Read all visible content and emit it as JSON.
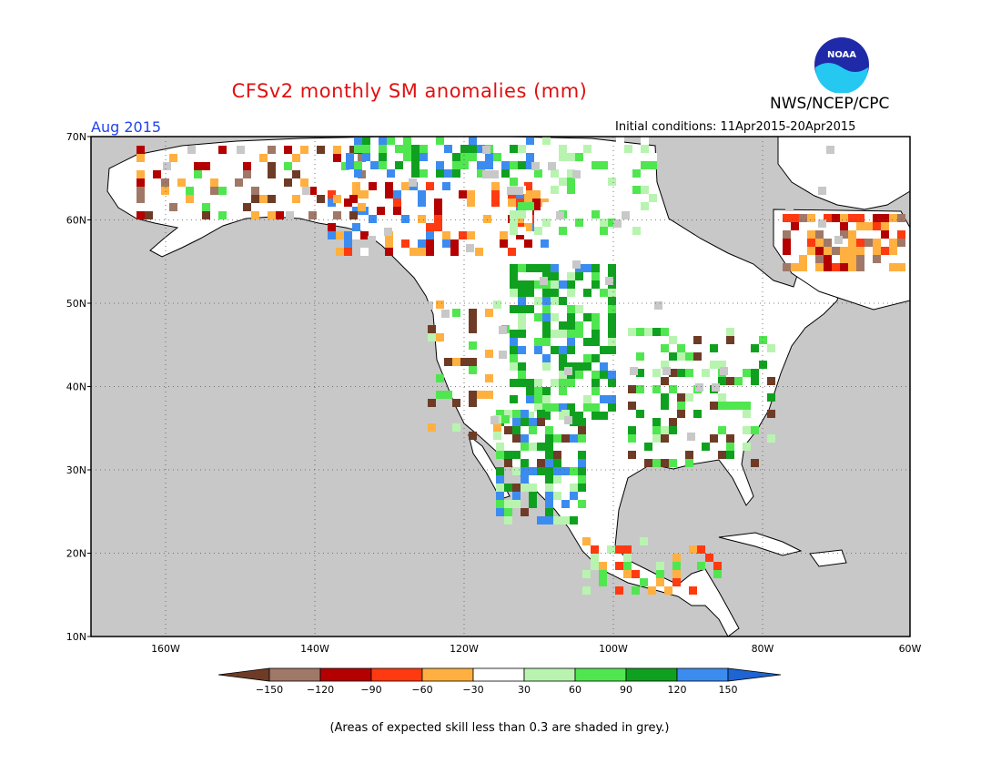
{
  "header": {
    "title": "CFSv2 monthly SM anomalies (mm)",
    "agency": "NWS/NCEP/CPC",
    "month": "Aug 2015",
    "initial_conditions": "Initial conditions: 11Apr2015-20Apr2015",
    "logo_text": "NOAA"
  },
  "map": {
    "lat_labels": [
      "70N",
      "60N",
      "50N",
      "40N",
      "30N",
      "20N",
      "10N"
    ],
    "lon_labels": [
      "160W",
      "140W",
      "120W",
      "100W",
      "80W",
      "60W"
    ],
    "ocean_color": "#c8c8c8",
    "land_color": "#ffffff"
  },
  "legend": {
    "ticks": [
      "-150",
      "-120",
      "-90",
      "-60",
      "-30",
      "30",
      "60",
      "90",
      "120",
      "150"
    ],
    "colors": [
      "#6e3c26",
      "#a07868",
      "#b40000",
      "#ff3a10",
      "#ffb040",
      "#ffffff",
      "#b8f4b0",
      "#50e650",
      "#10a020",
      "#3c8cf0",
      "#1e64d2"
    ]
  },
  "footnote": "(Areas of expected skill less than 0.3 are shaded in grey.)"
}
